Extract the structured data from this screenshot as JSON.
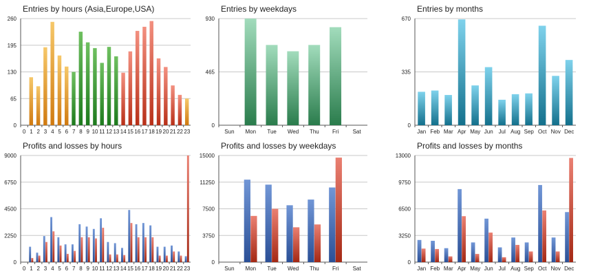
{
  "colors": {
    "grid": "#c8c8c8",
    "axis": "#555555",
    "text": "#222222",
    "asia_top": "#f6c86a",
    "asia_bottom": "#d07a10",
    "europe_top": "#6fc060",
    "europe_bottom": "#1d7a1d",
    "usa_top": "#f39080",
    "usa_bottom": "#b83018",
    "weekday_top": "#a2dcbc",
    "weekday_bottom": "#2a7c4c",
    "month_top": "#7fd2ec",
    "month_bottom": "#13708c",
    "profit_top": "#7196d6",
    "profit_bottom": "#2a4f96",
    "loss_top": "#ea8072",
    "loss_bottom": "#a42814"
  },
  "chart_data": [
    {
      "id": "entries-hours",
      "type": "bar",
      "title": "Entries by hours (Asia,Europe,USA)",
      "categories": [
        "0",
        "1",
        "2",
        "3",
        "4",
        "5",
        "6",
        "7",
        "8",
        "9",
        "10",
        "11",
        "12",
        "13",
        "14",
        "15",
        "16",
        "17",
        "18",
        "19",
        "20",
        "21",
        "22",
        "23"
      ],
      "ylim": [
        0,
        260
      ],
      "yticks": [
        0,
        65,
        130,
        195,
        260
      ],
      "series": [
        {
          "name": "entries",
          "values": [
            0,
            117,
            95,
            190,
            252,
            170,
            143,
            130,
            228,
            202,
            188,
            152,
            191,
            168,
            128,
            180,
            230,
            240,
            254,
            163,
            142,
            97,
            74,
            65
          ]
        }
      ],
      "bar_colors": [
        "asia",
        "asia",
        "asia",
        "asia",
        "asia",
        "asia",
        "asia",
        "europe",
        "europe",
        "europe",
        "europe",
        "europe",
        "europe",
        "europe",
        "usa",
        "usa",
        "usa",
        "usa",
        "usa",
        "usa",
        "usa",
        "usa",
        "usa",
        "asia"
      ]
    },
    {
      "id": "entries-weekdays",
      "type": "bar",
      "title": "Entries by weekdays",
      "categories": [
        "Sun",
        "Mon",
        "Tue",
        "Wed",
        "Thu",
        "Fri",
        "Sat"
      ],
      "ylim": [
        0,
        930
      ],
      "yticks": [
        0,
        465,
        930
      ],
      "series": [
        {
          "name": "entries",
          "values": [
            0,
            930,
            700,
            645,
            700,
            855,
            0
          ],
          "color": "weekday"
        }
      ]
    },
    {
      "id": "entries-months",
      "type": "bar",
      "title": "Entries by months",
      "categories": [
        "Jan",
        "Feb",
        "Mar",
        "Apr",
        "May",
        "Jun",
        "Jul",
        "Aug",
        "Sep",
        "Oct",
        "Nov",
        "Dec"
      ],
      "ylim": [
        0,
        670
      ],
      "yticks": [
        0,
        335,
        670
      ],
      "series": [
        {
          "name": "entries",
          "values": [
            210,
            218,
            190,
            665,
            250,
            365,
            160,
            195,
            200,
            625,
            310,
            410
          ],
          "color": "month"
        }
      ]
    },
    {
      "id": "pl-hours",
      "type": "bar",
      "title": "Profits and losses by hours",
      "categories": [
        "0",
        "1",
        "2",
        "3",
        "4",
        "5",
        "6",
        "7",
        "8",
        "9",
        "10",
        "11",
        "12",
        "13",
        "14",
        "15",
        "16",
        "17",
        "18",
        "19",
        "20",
        "21",
        "22",
        "23"
      ],
      "ylim": [
        0,
        9000
      ],
      "yticks": [
        0,
        2250,
        4500,
        6750,
        9000
      ],
      "series": [
        {
          "name": "Profits",
          "color": "profit",
          "values": [
            0,
            1300,
            800,
            2200,
            3800,
            2100,
            1500,
            1500,
            3200,
            3000,
            2800,
            3700,
            1700,
            1600,
            1200,
            4400,
            3200,
            3300,
            3100,
            1300,
            1300,
            1400,
            900,
            500
          ]
        },
        {
          "name": "Losses",
          "color": "loss",
          "values": [
            0,
            350,
            550,
            1700,
            2600,
            1400,
            700,
            950,
            2100,
            2100,
            2000,
            2900,
            650,
            650,
            600,
            3300,
            2100,
            2100,
            2100,
            550,
            550,
            900,
            550,
            9000
          ]
        }
      ]
    },
    {
      "id": "pl-weekdays",
      "type": "bar",
      "title": "Profits and losses by weekdays",
      "categories": [
        "Sun",
        "Mon",
        "Tue",
        "Wed",
        "Thu",
        "Fri",
        "Sat"
      ],
      "ylim": [
        0,
        15000
      ],
      "yticks": [
        0,
        3750,
        7500,
        11250,
        15000
      ],
      "series": [
        {
          "name": "Profits",
          "color": "profit",
          "values": [
            0,
            11600,
            10900,
            8000,
            8800,
            10500,
            0
          ]
        },
        {
          "name": "Losses",
          "color": "loss",
          "values": [
            0,
            6500,
            7500,
            4900,
            5300,
            14700,
            0
          ]
        }
      ]
    },
    {
      "id": "pl-months",
      "type": "bar",
      "title": "Profits and losses by months",
      "categories": [
        "Jan",
        "Feb",
        "Mar",
        "Apr",
        "May",
        "Jun",
        "Jul",
        "Aug",
        "Sep",
        "Oct",
        "Nov",
        "Dec"
      ],
      "ylim": [
        0,
        13000
      ],
      "yticks": [
        0,
        3250,
        6500,
        9750,
        13000
      ],
      "series": [
        {
          "name": "Profits",
          "color": "profit",
          "values": [
            2700,
            2600,
            1700,
            8900,
            2400,
            5300,
            1800,
            3000,
            2400,
            9400,
            3000,
            6100
          ]
        },
        {
          "name": "Losses",
          "color": "loss",
          "values": [
            1650,
            1600,
            700,
            5600,
            1000,
            3600,
            600,
            2100,
            1300,
            6300,
            1300,
            12700
          ]
        }
      ]
    }
  ]
}
